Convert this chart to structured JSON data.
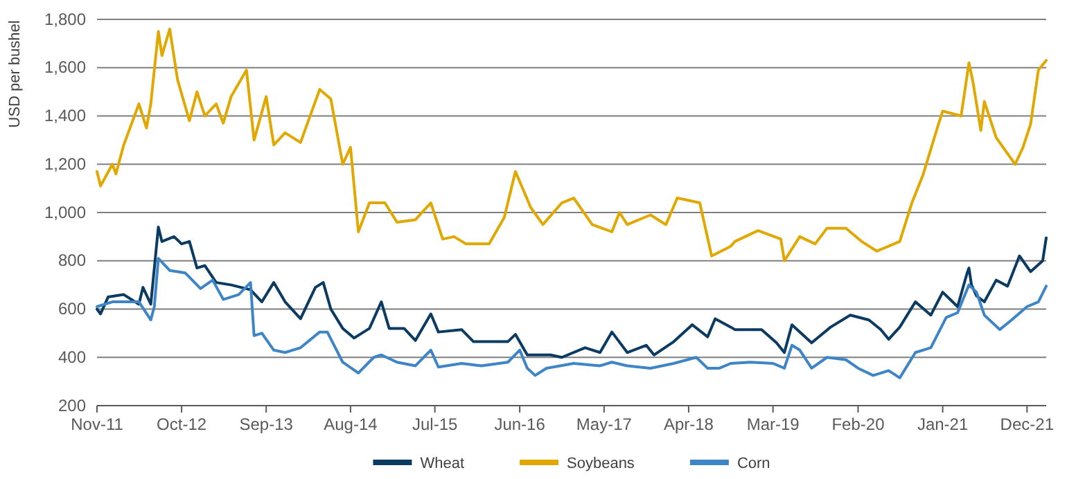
{
  "chart_data": {
    "type": "line",
    "ylabel": "USD per bushel",
    "xlim": [
      "2011-11-01",
      "2022-02-15"
    ],
    "xticks": [
      {
        "value": "2011-11-01",
        "label": "Nov-11"
      },
      {
        "value": "2012-10-01",
        "label": "Oct-12"
      },
      {
        "value": "2013-09-01",
        "label": "Sep-13"
      },
      {
        "value": "2014-08-01",
        "label": "Aug-14"
      },
      {
        "value": "2015-07-01",
        "label": "Jul-15"
      },
      {
        "value": "2016-06-01",
        "label": "Jun-16"
      },
      {
        "value": "2017-05-01",
        "label": "May-17"
      },
      {
        "value": "2018-04-01",
        "label": "Apr-18"
      },
      {
        "value": "2019-03-01",
        "label": "Mar-19"
      },
      {
        "value": "2020-02-01",
        "label": "Feb-20"
      },
      {
        "value": "2021-01-01",
        "label": "Jan-21"
      },
      {
        "value": "2021-12-01",
        "label": "Dec-21"
      }
    ],
    "ylim": [
      200,
      1800
    ],
    "yticks": [
      200,
      400,
      600,
      800,
      {
        "value": 1000,
        "label": "1,000"
      },
      {
        "value": 1200,
        "label": "1,200"
      },
      {
        "value": 1400,
        "label": "1,400"
      },
      {
        "value": 1600,
        "label": "1,600"
      },
      {
        "value": 1800,
        "label": "1,800"
      }
    ],
    "grid": "y",
    "legend": "bottom",
    "marker": "none",
    "line_style": "solid",
    "series": [
      {
        "name": "Wheat",
        "color": "#0b3a62",
        "x": [
          "2011-11-01",
          "2011-11-15",
          "2011-12-15",
          "2012-02-15",
          "2012-04-15",
          "2012-05-01",
          "2012-06-01",
          "2012-07-01",
          "2012-07-15",
          "2012-09-01",
          "2012-10-01",
          "2012-11-01",
          "2012-12-01",
          "2013-01-01",
          "2013-02-15",
          "2013-04-15",
          "2013-07-01",
          "2013-08-15",
          "2013-10-01",
          "2013-11-15",
          "2014-01-15",
          "2014-03-15",
          "2014-04-15",
          "2014-05-15",
          "2014-07-01",
          "2014-08-15",
          "2014-10-15",
          "2014-12-01",
          "2015-01-01",
          "2015-03-01",
          "2015-04-15",
          "2015-06-15",
          "2015-07-15",
          "2015-10-15",
          "2015-12-01",
          "2016-04-15",
          "2016-05-15",
          "2016-07-01",
          "2016-10-01",
          "2016-11-15",
          "2017-02-15",
          "2017-04-15",
          "2017-06-01",
          "2017-08-01",
          "2017-10-15",
          "2017-11-15",
          "2018-02-01",
          "2018-04-15",
          "2018-06-15",
          "2018-07-15",
          "2018-09-15",
          "2018-10-01",
          "2019-01-15",
          "2019-03-15",
          "2019-04-15",
          "2019-05-15",
          "2019-08-01",
          "2019-10-15",
          "2020-01-01",
          "2020-03-15",
          "2020-05-01",
          "2020-06-01",
          "2020-07-15",
          "2020-09-15",
          "2020-11-15",
          "2021-01-01",
          "2021-03-01",
          "2021-04-08",
          "2021-04-15",
          "2021-04-25",
          "2021-05-15",
          "2021-06-15",
          "2021-08-01",
          "2021-09-15",
          "2021-11-01",
          "2021-12-15",
          "2022-02-01",
          "2022-02-15"
        ],
        "values": [
          600,
          580,
          650,
          660,
          620,
          690,
          620,
          940,
          880,
          900,
          870,
          880,
          770,
          780,
          710,
          700,
          680,
          630,
          710,
          630,
          560,
          690,
          710,
          600,
          520,
          480,
          520,
          630,
          520,
          520,
          470,
          580,
          505,
          515,
          465,
          465,
          495,
          410,
          410,
          400,
          440,
          420,
          505,
          420,
          450,
          410,
          465,
          535,
          485,
          560,
          525,
          515,
          515,
          460,
          420,
          535,
          460,
          525,
          575,
          555,
          515,
          475,
          525,
          630,
          575,
          670,
          610,
          750,
          770,
          700,
          655,
          630,
          720,
          695,
          820,
          755,
          800,
          895
        ]
      },
      {
        "name": "Soybeans",
        "color": "#e0a800",
        "x": [
          "2011-11-01",
          "2011-11-15",
          "2012-01-01",
          "2012-01-15",
          "2012-02-15",
          "2012-04-15",
          "2012-05-15",
          "2012-06-01",
          "2012-07-01",
          "2012-07-15",
          "2012-08-15",
          "2012-09-15",
          "2012-11-01",
          "2012-12-01",
          "2013-01-01",
          "2013-02-15",
          "2013-03-15",
          "2013-04-15",
          "2013-06-15",
          "2013-07-15",
          "2013-09-01",
          "2013-10-01",
          "2013-11-15",
          "2014-01-15",
          "2014-04-01",
          "2014-05-15",
          "2014-07-01",
          "2014-08-01",
          "2014-09-01",
          "2014-10-15",
          "2014-12-15",
          "2015-02-01",
          "2015-04-15",
          "2015-06-15",
          "2015-08-01",
          "2015-09-15",
          "2015-11-01",
          "2016-02-01",
          "2016-04-01",
          "2016-05-15",
          "2016-07-15",
          "2016-09-01",
          "2016-11-15",
          "2017-01-01",
          "2017-03-15",
          "2017-06-01",
          "2017-07-01",
          "2017-08-01",
          "2017-11-01",
          "2018-01-01",
          "2018-02-15",
          "2018-05-15",
          "2018-07-01",
          "2018-09-15",
          "2018-10-01",
          "2019-01-01",
          "2019-04-01",
          "2019-04-15",
          "2019-06-15",
          "2019-08-15",
          "2019-10-01",
          "2019-12-15",
          "2020-02-15",
          "2020-04-15",
          "2020-07-15",
          "2020-09-01",
          "2020-10-15",
          "2020-12-15",
          "2021-01-01",
          "2021-03-15",
          "2021-04-15",
          "2021-05-01",
          "2021-06-01",
          "2021-06-15",
          "2021-08-01",
          "2021-10-15",
          "2021-11-15",
          "2021-12-15",
          "2022-01-15",
          "2022-02-15"
        ],
        "values": [
          1170,
          1110,
          1200,
          1160,
          1280,
          1450,
          1350,
          1450,
          1750,
          1650,
          1760,
          1550,
          1380,
          1500,
          1400,
          1450,
          1370,
          1480,
          1590,
          1300,
          1480,
          1280,
          1330,
          1290,
          1510,
          1470,
          1200,
          1270,
          920,
          1040,
          1040,
          960,
          970,
          1040,
          890,
          900,
          870,
          870,
          980,
          1170,
          1020,
          950,
          1040,
          1060,
          950,
          920,
          1000,
          950,
          990,
          950,
          1060,
          1040,
          820,
          860,
          880,
          925,
          890,
          800,
          900,
          870,
          935,
          935,
          880,
          840,
          880,
          1040,
          1155,
          1365,
          1420,
          1400,
          1620,
          1540,
          1340,
          1460,
          1310,
          1200,
          1270,
          1365,
          1590,
          1630
        ]
      },
      {
        "name": "Corn",
        "color": "#3d85c6",
        "x": [
          "2011-11-01",
          "2012-01-01",
          "2012-04-15",
          "2012-06-01",
          "2012-06-15",
          "2012-07-01",
          "2012-08-15",
          "2012-10-15",
          "2012-12-15",
          "2013-02-01",
          "2013-03-15",
          "2013-05-15",
          "2013-07-01",
          "2013-07-15",
          "2013-08-15",
          "2013-10-01",
          "2013-11-15",
          "2014-01-15",
          "2014-04-01",
          "2014-05-01",
          "2014-07-01",
          "2014-09-01",
          "2014-11-01",
          "2014-12-01",
          "2015-02-01",
          "2015-04-15",
          "2015-06-15",
          "2015-07-15",
          "2015-10-15",
          "2016-01-01",
          "2016-04-15",
          "2016-06-01",
          "2016-07-01",
          "2016-08-01",
          "2016-09-15",
          "2017-01-01",
          "2017-04-15",
          "2017-06-01",
          "2017-08-01",
          "2017-11-01",
          "2018-02-01",
          "2018-05-01",
          "2018-06-15",
          "2018-08-01",
          "2018-09-15",
          "2018-12-01",
          "2019-03-01",
          "2019-04-15",
          "2019-05-15",
          "2019-06-15",
          "2019-08-01",
          "2019-10-01",
          "2019-12-15",
          "2020-02-01",
          "2020-04-01",
          "2020-06-01",
          "2020-07-15",
          "2020-09-15",
          "2020-11-15",
          "2021-01-15",
          "2021-03-01",
          "2021-04-15",
          "2021-05-15",
          "2021-06-15",
          "2021-08-15",
          "2021-10-01",
          "2021-12-01",
          "2022-01-15",
          "2022-02-15"
        ],
        "values": [
          610,
          630,
          630,
          555,
          610,
          810,
          760,
          750,
          685,
          720,
          640,
          660,
          710,
          490,
          500,
          430,
          420,
          440,
          505,
          505,
          380,
          335,
          400,
          410,
          380,
          365,
          430,
          360,
          375,
          365,
          380,
          430,
          355,
          325,
          355,
          375,
          365,
          380,
          365,
          355,
          375,
          400,
          355,
          355,
          375,
          380,
          375,
          355,
          450,
          430,
          355,
          400,
          390,
          355,
          325,
          345,
          315,
          420,
          440,
          565,
          585,
          700,
          670,
          575,
          515,
          555,
          610,
          630,
          695
        ]
      }
    ]
  }
}
